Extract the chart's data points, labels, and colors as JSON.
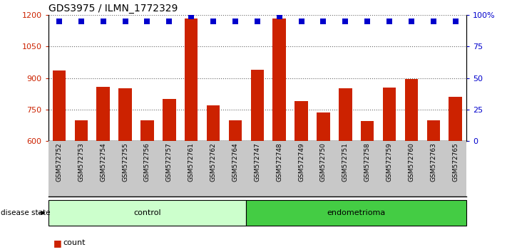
{
  "title": "GDS3975 / ILMN_1772329",
  "samples": [
    "GSM572752",
    "GSM572753",
    "GSM572754",
    "GSM572755",
    "GSM572756",
    "GSM572757",
    "GSM572761",
    "GSM572762",
    "GSM572764",
    "GSM572747",
    "GSM572748",
    "GSM572749",
    "GSM572750",
    "GSM572751",
    "GSM572758",
    "GSM572759",
    "GSM572760",
    "GSM572763",
    "GSM572765"
  ],
  "bar_values": [
    935,
    700,
    860,
    850,
    700,
    800,
    1185,
    770,
    700,
    940,
    1185,
    790,
    735,
    850,
    695,
    855,
    895,
    700,
    810
  ],
  "percentile_values": [
    95,
    95,
    95,
    95,
    95,
    95,
    99,
    95,
    95,
    95,
    99,
    95,
    95,
    95,
    95,
    95,
    95,
    95,
    95
  ],
  "control_count": 9,
  "endometrioma_count": 10,
  "ymin": 600,
  "ymax": 1200,
  "yticks": [
    600,
    750,
    900,
    1050,
    1200
  ],
  "ytick_labels": [
    "600",
    "750",
    "900",
    "1050",
    "1200"
  ],
  "y2ticks": [
    0,
    25,
    50,
    75,
    100
  ],
  "y2tick_labels": [
    "0",
    "25",
    "50",
    "75",
    "100%"
  ],
  "bar_color": "#cc2200",
  "dot_color": "#0000cc",
  "control_color": "#ccffcc",
  "endometrioma_color": "#44cc44",
  "xtick_bg_color": "#c8c8c8",
  "dot_size": 40,
  "bar_width": 0.6
}
